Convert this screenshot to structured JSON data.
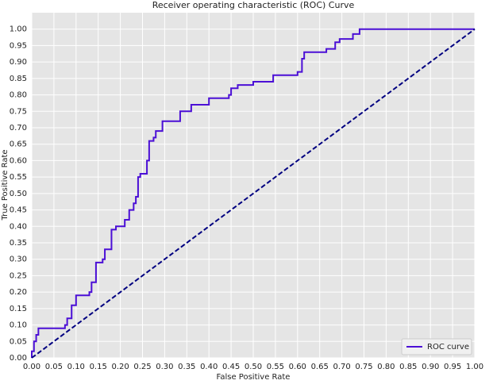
{
  "chart_data": {
    "type": "line",
    "title": "Receiver operating characteristic (ROC) Curve",
    "x_label": "False Positive Rate",
    "y_label": "True Positive Rate",
    "xlim": [
      0,
      1
    ],
    "ylim": [
      0,
      1.05
    ],
    "xticks": [
      {
        "value": 0,
        "label": "0.00"
      },
      {
        "value": 0.05,
        "label": "0.05"
      },
      {
        "value": 0.1,
        "label": "0.10"
      },
      {
        "value": 0.15,
        "label": "0.15"
      },
      {
        "value": 0.2,
        "label": "0.20"
      },
      {
        "value": 0.25,
        "label": "0.25"
      },
      {
        "value": 0.3,
        "label": "0.30"
      },
      {
        "value": 0.35,
        "label": "0.35"
      },
      {
        "value": 0.4,
        "label": "0.40"
      },
      {
        "value": 0.45,
        "label": "0.45"
      },
      {
        "value": 0.5,
        "label": "0.50"
      },
      {
        "value": 0.55,
        "label": "0.55"
      },
      {
        "value": 0.6,
        "label": "0.60"
      },
      {
        "value": 0.65,
        "label": "0.65"
      },
      {
        "value": 0.7,
        "label": "0.70"
      },
      {
        "value": 0.75,
        "label": "0.75"
      },
      {
        "value": 0.8,
        "label": "0.80"
      },
      {
        "value": 0.85,
        "label": "0.85"
      },
      {
        "value": 0.9,
        "label": "0.90"
      },
      {
        "value": 0.95,
        "label": "0.95"
      },
      {
        "value": 1,
        "label": "1.00"
      }
    ],
    "yticks": [
      {
        "value": 0,
        "label": "0.00"
      },
      {
        "value": 0.05,
        "label": "0.05"
      },
      {
        "value": 0.1,
        "label": "0.10"
      },
      {
        "value": 0.15,
        "label": "0.15"
      },
      {
        "value": 0.2,
        "label": "0.20"
      },
      {
        "value": 0.25,
        "label": "0.25"
      },
      {
        "value": 0.3,
        "label": "0.30"
      },
      {
        "value": 0.35,
        "label": "0.35"
      },
      {
        "value": 0.4,
        "label": "0.40"
      },
      {
        "value": 0.45,
        "label": "0.45"
      },
      {
        "value": 0.5,
        "label": "0.50"
      },
      {
        "value": 0.55,
        "label": "0.55"
      },
      {
        "value": 0.6,
        "label": "0.60"
      },
      {
        "value": 0.65,
        "label": "0.65"
      },
      {
        "value": 0.7,
        "label": "0.70"
      },
      {
        "value": 0.75,
        "label": "0.75"
      },
      {
        "value": 0.8,
        "label": "0.80"
      },
      {
        "value": 0.85,
        "label": "0.85"
      },
      {
        "value": 0.9,
        "label": "0.90"
      },
      {
        "value": 0.95,
        "label": "0.95"
      },
      {
        "value": 1,
        "label": "1.00"
      }
    ],
    "grid": true,
    "legend": "lower right",
    "series": [
      {
        "name": "ROC curve",
        "color": "#4b0fd6",
        "dash": false,
        "x": [
          0,
          0,
          0.005,
          0.005,
          0.01,
          0.01,
          0.015,
          0.015,
          0.075,
          0.075,
          0.08,
          0.08,
          0.09,
          0.09,
          0.1,
          0.1,
          0.13,
          0.13,
          0.135,
          0.135,
          0.145,
          0.145,
          0.16,
          0.16,
          0.165,
          0.165,
          0.18,
          0.18,
          0.19,
          0.19,
          0.21,
          0.21,
          0.22,
          0.22,
          0.23,
          0.23,
          0.235,
          0.235,
          0.24,
          0.24,
          0.245,
          0.245,
          0.26,
          0.26,
          0.265,
          0.265,
          0.275,
          0.275,
          0.28,
          0.28,
          0.295,
          0.295,
          0.335,
          0.335,
          0.36,
          0.36,
          0.4,
          0.4,
          0.445,
          0.445,
          0.45,
          0.45,
          0.465,
          0.465,
          0.5,
          0.5,
          0.545,
          0.545,
          0.6,
          0.6,
          0.61,
          0.61,
          0.615,
          0.615,
          0.665,
          0.665,
          0.685,
          0.685,
          0.695,
          0.695,
          0.725,
          0.725,
          0.74,
          0.74,
          1
        ],
        "values": [
          0,
          0.02,
          0.02,
          0.05,
          0.05,
          0.07,
          0.07,
          0.09,
          0.09,
          0.1,
          0.1,
          0.12,
          0.12,
          0.16,
          0.16,
          0.19,
          0.19,
          0.2,
          0.2,
          0.23,
          0.23,
          0.29,
          0.29,
          0.3,
          0.3,
          0.33,
          0.33,
          0.39,
          0.39,
          0.4,
          0.4,
          0.42,
          0.42,
          0.45,
          0.45,
          0.47,
          0.47,
          0.49,
          0.49,
          0.55,
          0.55,
          0.56,
          0.56,
          0.6,
          0.6,
          0.66,
          0.66,
          0.67,
          0.67,
          0.69,
          0.69,
          0.72,
          0.72,
          0.75,
          0.75,
          0.77,
          0.77,
          0.79,
          0.79,
          0.8,
          0.8,
          0.82,
          0.82,
          0.83,
          0.83,
          0.84,
          0.84,
          0.86,
          0.86,
          0.87,
          0.87,
          0.91,
          0.91,
          0.93,
          0.93,
          0.94,
          0.94,
          0.96,
          0.96,
          0.97,
          0.97,
          0.985,
          0.985,
          1,
          1
        ]
      },
      {
        "color": "#000080",
        "dash": true,
        "x": [
          0,
          1
        ],
        "values": [
          0,
          1
        ]
      }
    ]
  }
}
